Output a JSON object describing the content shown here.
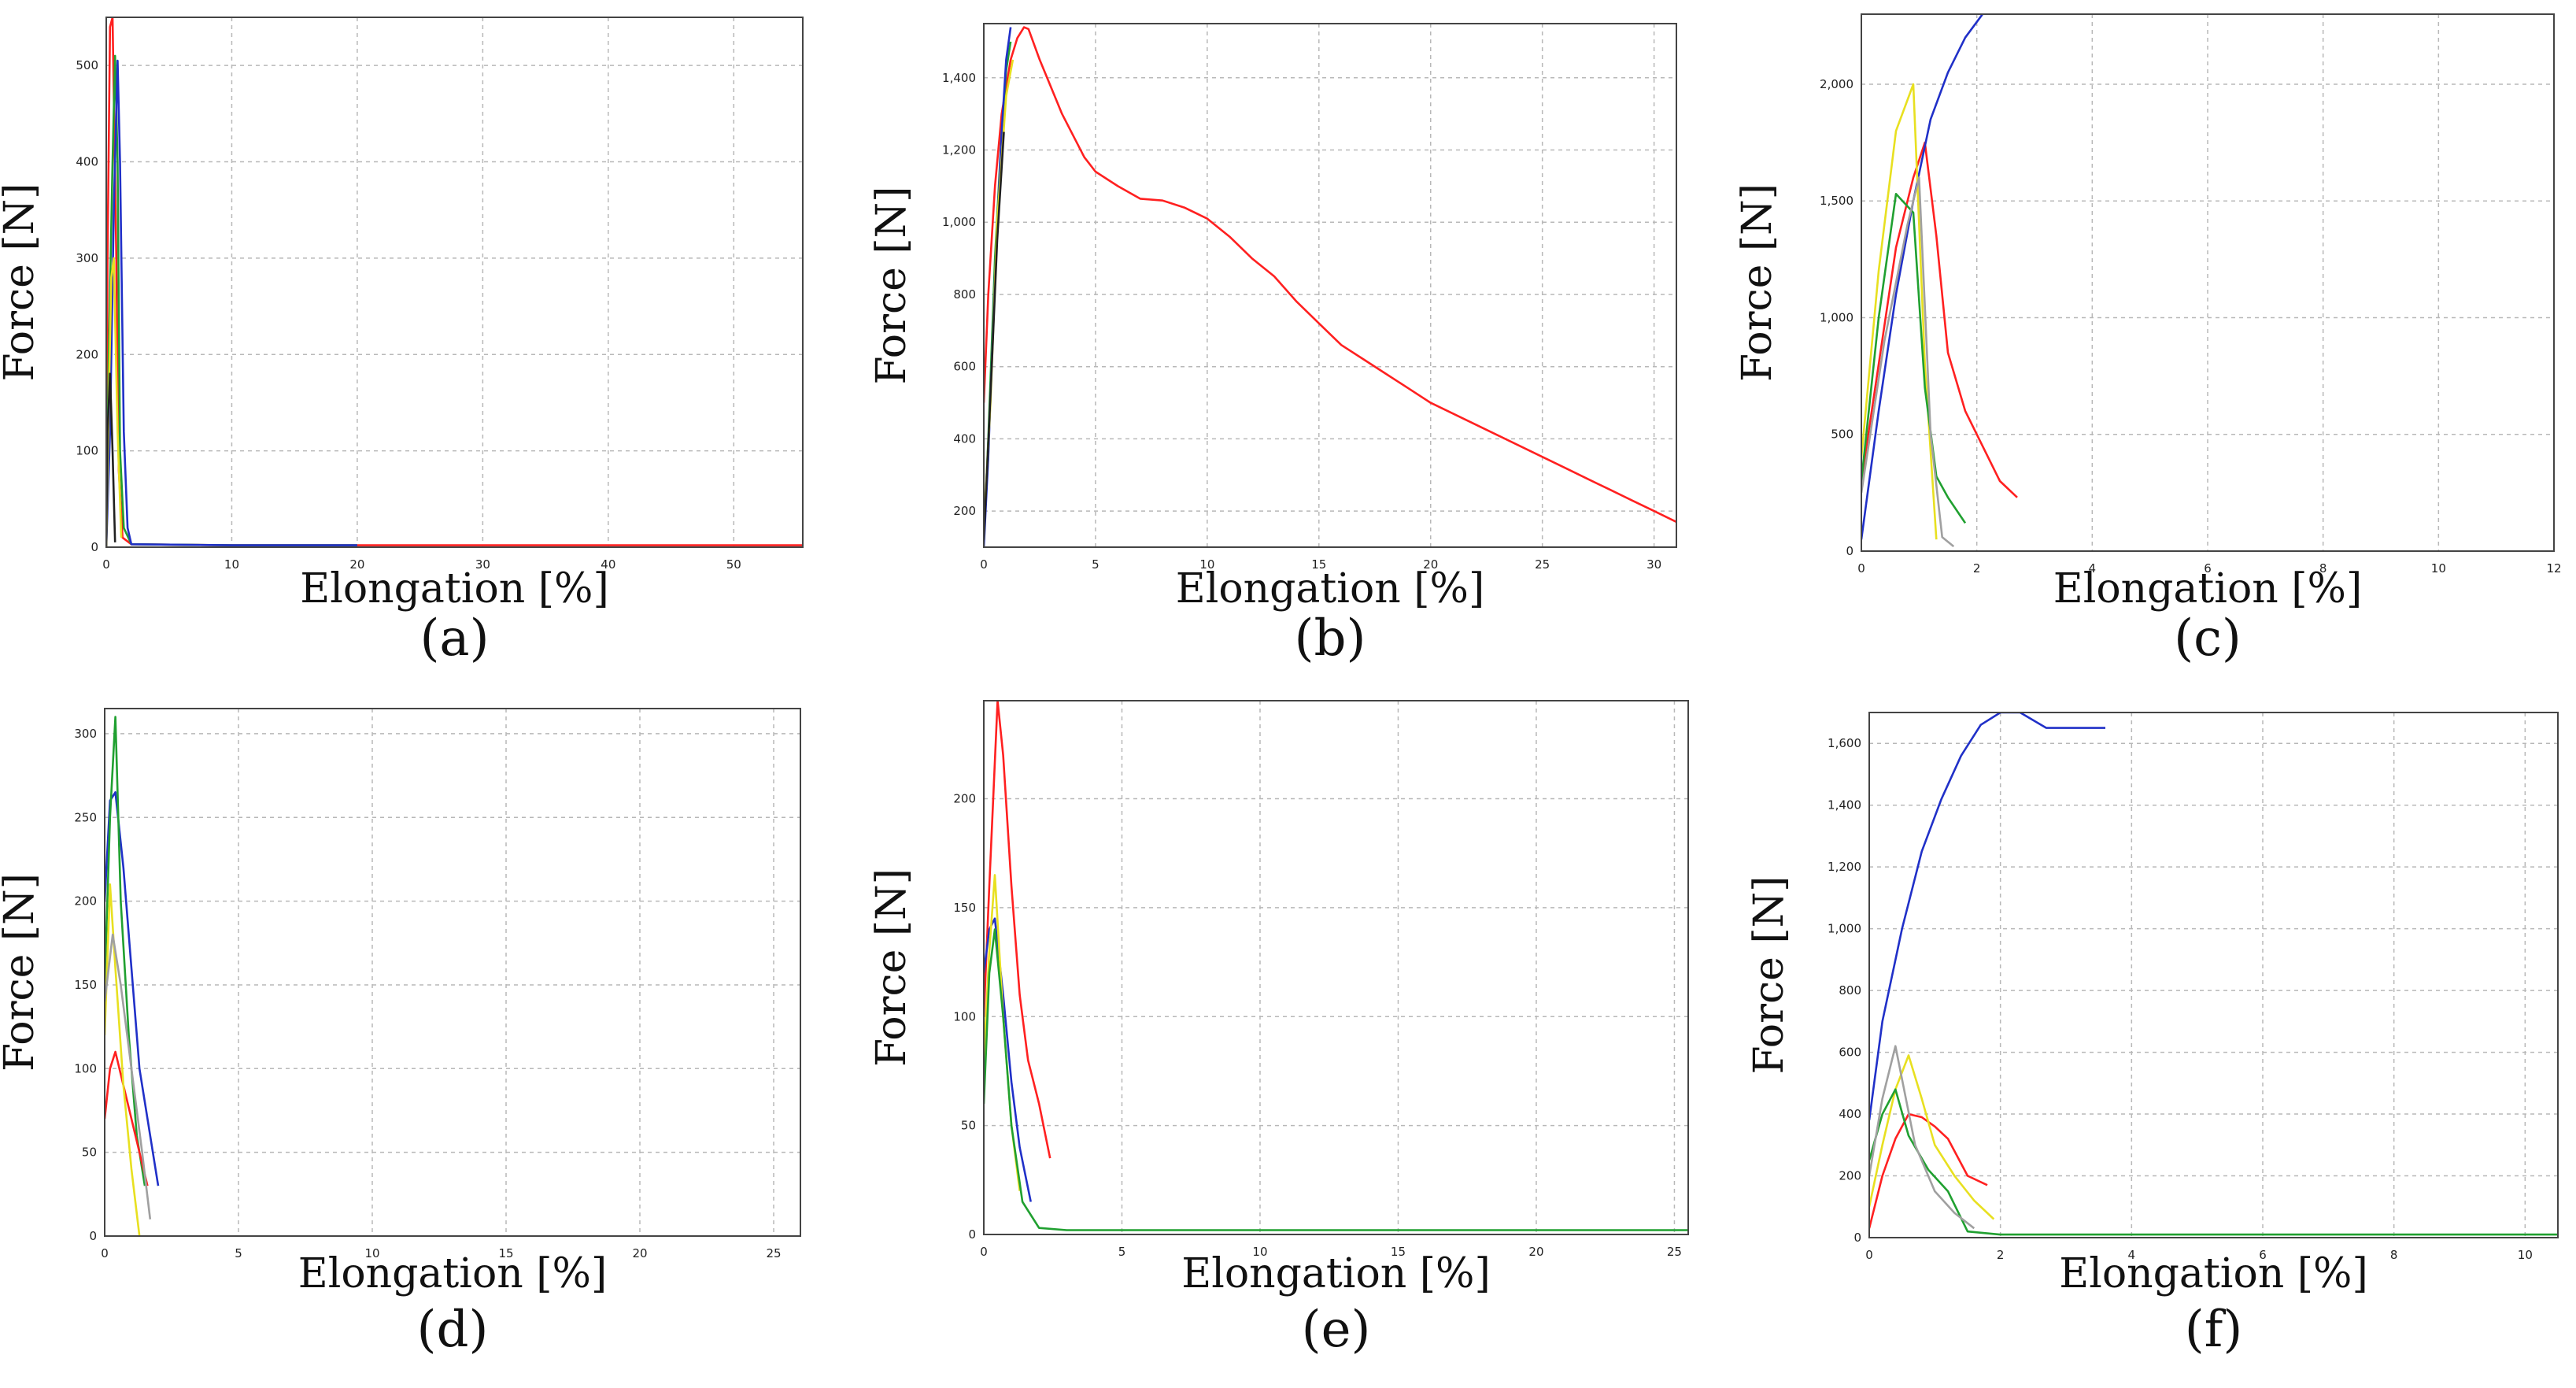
{
  "figure": {
    "colors": {
      "frame": "#444444",
      "grid": "#b8b8b8",
      "text": "#111111"
    }
  },
  "chart_data": [
    {
      "id": "a",
      "type": "line",
      "panel_label": "(a)",
      "xlabel": "Elongation [%]",
      "ylabel": "Force [N]",
      "xlim": [
        0,
        55.5
      ],
      "ylim": [
        0,
        550
      ],
      "xticks": [
        0,
        10,
        20,
        30,
        40,
        50
      ],
      "xtick_labels": [
        "0",
        "10",
        "20",
        "30",
        "40",
        "50"
      ],
      "yticks": [
        0,
        100,
        200,
        300,
        400,
        500
      ],
      "ytick_labels": [
        "0",
        "100",
        "200",
        "300",
        "400",
        "500"
      ],
      "series": [
        {
          "name": "red",
          "color": "#ff2020",
          "x": [
            0,
            0.1,
            0.3,
            0.5,
            0.8,
            1.0,
            1.3,
            2,
            10,
            20,
            30,
            40,
            50,
            55.5
          ],
          "y": [
            0,
            300,
            540,
            550,
            300,
            80,
            10,
            3,
            2,
            2,
            2,
            2,
            2,
            2
          ]
        },
        {
          "name": "green",
          "color": "#20a030",
          "x": [
            0,
            0.2,
            0.5,
            0.7,
            0.9,
            1.1,
            1.4,
            2,
            10,
            20
          ],
          "y": [
            0,
            200,
            400,
            510,
            400,
            100,
            20,
            3,
            2,
            2
          ]
        },
        {
          "name": "blue",
          "color": "#2030c8",
          "x": [
            0,
            0.3,
            0.6,
            0.9,
            1.1,
            1.4,
            1.7,
            2,
            10,
            20
          ],
          "y": [
            0,
            120,
            350,
            505,
            400,
            120,
            20,
            3,
            2,
            2
          ]
        },
        {
          "name": "yellow",
          "color": "#e8e020",
          "x": [
            0,
            0.2,
            0.4,
            0.6,
            0.9,
            1.2
          ],
          "y": [
            0,
            150,
            280,
            300,
            120,
            10
          ]
        },
        {
          "name": "black",
          "color": "#202020",
          "x": [
            0,
            0.1,
            0.3,
            0.5,
            0.7
          ],
          "y": [
            0,
            120,
            180,
            100,
            5
          ]
        }
      ]
    },
    {
      "id": "b",
      "type": "line",
      "panel_label": "(b)",
      "xlabel": "Elongation [%]",
      "ylabel": "Force [N]",
      "xlim": [
        0,
        31
      ],
      "ylim": [
        100,
        1550
      ],
      "xticks": [
        0,
        5,
        10,
        15,
        20,
        25,
        30
      ],
      "xtick_labels": [
        "0",
        "5",
        "10",
        "15",
        "20",
        "25",
        "30"
      ],
      "yticks": [
        200,
        400,
        600,
        800,
        1000,
        1200,
        1400
      ],
      "ytick_labels": [
        "200",
        "400",
        "600",
        "800",
        "1,000",
        "1,200",
        "1,400"
      ],
      "series": [
        {
          "name": "red",
          "color": "#ff2020",
          "x": [
            0,
            0.2,
            0.5,
            0.8,
            1.2,
            1.5,
            1.8,
            2.0,
            2.5,
            3.5,
            4.5,
            5.0,
            6.0,
            7.0,
            8.0,
            9.0,
            10.0,
            11.0,
            12.0,
            13.0,
            14.0,
            15.0,
            16.0,
            17.0,
            18.0,
            19.0,
            20.0,
            21.0,
            22.0,
            23.0,
            24.0,
            25.0,
            26.0,
            27.0,
            28.0,
            29.0,
            30.0,
            31.0
          ],
          "y": [
            500,
            800,
            1100,
            1300,
            1450,
            1510,
            1540,
            1535,
            1450,
            1300,
            1180,
            1140,
            1100,
            1065,
            1060,
            1040,
            1010,
            960,
            900,
            850,
            780,
            720,
            660,
            620,
            580,
            540,
            500,
            470,
            440,
            410,
            380,
            350,
            320,
            290,
            260,
            230,
            200,
            170
          ]
        },
        {
          "name": "green",
          "color": "#20a030",
          "x": [
            0,
            0.2,
            0.5,
            0.8,
            1.0,
            1.2
          ],
          "y": [
            120,
            400,
            900,
            1250,
            1420,
            1500
          ]
        },
        {
          "name": "blue",
          "color": "#2030c8",
          "x": [
            0,
            0.2,
            0.5,
            0.8,
            1.0,
            1.2
          ],
          "y": [
            100,
            350,
            850,
            1250,
            1450,
            1540
          ]
        },
        {
          "name": "yellow",
          "color": "#e8e020",
          "x": [
            0,
            0.3,
            0.6,
            1.0,
            1.3
          ],
          "y": [
            150,
            500,
            1000,
            1350,
            1450
          ]
        },
        {
          "name": "black",
          "color": "#202020",
          "x": [
            0,
            0.3,
            0.6,
            0.9
          ],
          "y": [
            120,
            520,
            950,
            1250
          ]
        }
      ]
    },
    {
      "id": "c",
      "type": "line",
      "panel_label": "(c)",
      "xlabel": "Elongation [%]",
      "ylabel": "Force [N]",
      "xlim": [
        0,
        12
      ],
      "ylim": [
        0,
        2300
      ],
      "xticks": [
        0,
        2,
        4,
        6,
        8,
        10,
        12
      ],
      "xtick_labels": [
        "0",
        "2",
        "4",
        "6",
        "8",
        "10",
        "12"
      ],
      "yticks": [
        0,
        500,
        1000,
        1500,
        2000
      ],
      "ytick_labels": [
        "0",
        "500",
        "1,000",
        "1,500",
        "2,000"
      ],
      "series": [
        {
          "name": "red",
          "color": "#ff2020",
          "x": [
            0,
            0.3,
            0.6,
            0.9,
            1.1,
            1.3,
            1.5,
            1.8,
            2.1,
            2.4,
            2.7
          ],
          "y": [
            300,
            800,
            1300,
            1600,
            1750,
            1350,
            850,
            600,
            450,
            300,
            230
          ]
        },
        {
          "name": "blue",
          "color": "#2030c8",
          "x": [
            0,
            0.3,
            0.6,
            0.9,
            1.2,
            1.5,
            1.8,
            2.1
          ],
          "y": [
            50,
            600,
            1100,
            1500,
            1850,
            2050,
            2200,
            2300
          ]
        },
        {
          "name": "yellow",
          "color": "#e8e020",
          "x": [
            0,
            0.3,
            0.6,
            0.9,
            1.1,
            1.3
          ],
          "y": [
            400,
            1200,
            1800,
            2000,
            800,
            50
          ]
        },
        {
          "name": "green",
          "color": "#20a030",
          "x": [
            0,
            0.3,
            0.6,
            0.9,
            1.1,
            1.3,
            1.5,
            1.8
          ],
          "y": [
            300,
            1000,
            1530,
            1450,
            700,
            320,
            230,
            120
          ]
        },
        {
          "name": "gray",
          "color": "#a0a0a0",
          "x": [
            0,
            0.4,
            0.8,
            1.0,
            1.2,
            1.4,
            1.6
          ],
          "y": [
            250,
            900,
            1400,
            1600,
            500,
            60,
            20
          ]
        }
      ]
    },
    {
      "id": "d",
      "type": "line",
      "panel_label": "(d)",
      "xlabel": "Elongation [%]",
      "ylabel": "Force [N]",
      "xlim": [
        0,
        26
      ],
      "ylim": [
        0,
        315
      ],
      "xticks": [
        0,
        5,
        10,
        15,
        20,
        25
      ],
      "xtick_labels": [
        "0",
        "5",
        "10",
        "15",
        "20",
        "25"
      ],
      "yticks": [
        0,
        50,
        100,
        150,
        200,
        250,
        300
      ],
      "ytick_labels": [
        "0",
        "50",
        "100",
        "150",
        "200",
        "250",
        "300"
      ],
      "series": [
        {
          "name": "blue",
          "color": "#2030c8",
          "x": [
            0,
            0.2,
            0.4,
            0.7,
            1.0,
            1.3,
            1.6,
            2.0
          ],
          "y": [
            200,
            260,
            265,
            220,
            160,
            100,
            70,
            30
          ]
        },
        {
          "name": "green",
          "color": "#20a030",
          "x": [
            0,
            0.2,
            0.4,
            0.6,
            0.9,
            1.2,
            1.5
          ],
          "y": [
            150,
            250,
            310,
            200,
            120,
            60,
            30
          ]
        },
        {
          "name": "red",
          "color": "#ff2020",
          "x": [
            0,
            0.2,
            0.4,
            0.7,
            1.0,
            1.3,
            1.6
          ],
          "y": [
            70,
            100,
            110,
            90,
            70,
            50,
            30
          ]
        },
        {
          "name": "yellow",
          "color": "#e8e020",
          "x": [
            0,
            0.2,
            0.4,
            0.7,
            1.0,
            1.3
          ],
          "y": [
            120,
            210,
            160,
            90,
            40,
            0
          ]
        },
        {
          "name": "gray",
          "color": "#a0a0a0",
          "x": [
            0,
            0.3,
            0.6,
            1.0,
            1.4,
            1.7
          ],
          "y": [
            140,
            180,
            150,
            100,
            50,
            10
          ]
        }
      ]
    },
    {
      "id": "e",
      "type": "line",
      "panel_label": "(e)",
      "xlabel": "Elongation [%]",
      "ylabel": "Force [N]",
      "xlim": [
        0,
        25.5
      ],
      "ylim": [
        0,
        245
      ],
      "xticks": [
        0,
        5,
        10,
        15,
        20,
        25
      ],
      "xtick_labels": [
        "0",
        "5",
        "10",
        "15",
        "20",
        "25"
      ],
      "yticks": [
        0,
        50,
        100,
        150,
        200
      ],
      "ytick_labels": [
        "0",
        "50",
        "100",
        "150",
        "200"
      ],
      "series": [
        {
          "name": "red",
          "color": "#ff2020",
          "x": [
            0,
            0.2,
            0.5,
            0.7,
            1.0,
            1.3,
            1.6,
            2.0,
            2.4
          ],
          "y": [
            100,
            160,
            245,
            220,
            160,
            110,
            80,
            60,
            35
          ]
        },
        {
          "name": "blue",
          "color": "#2030c8",
          "x": [
            0,
            0.2,
            0.4,
            0.7,
            1.0,
            1.3,
            1.7
          ],
          "y": [
            120,
            140,
            145,
            110,
            70,
            40,
            15
          ]
        },
        {
          "name": "yellow",
          "color": "#e8e020",
          "x": [
            0,
            0.2,
            0.4,
            0.7,
            1.0,
            1.3
          ],
          "y": [
            80,
            130,
            165,
            100,
            50,
            20
          ]
        },
        {
          "name": "green",
          "color": "#20a030",
          "x": [
            0,
            0.2,
            0.4,
            0.7,
            1.0,
            1.4,
            2.0,
            3.0,
            5,
            10,
            15,
            20,
            25.5
          ],
          "y": [
            60,
            120,
            140,
            100,
            50,
            15,
            3,
            2,
            2,
            2,
            2,
            2,
            2
          ]
        }
      ]
    },
    {
      "id": "f",
      "type": "line",
      "panel_label": "(f)",
      "xlabel": "Elongation [%]",
      "ylabel": "Force [N]",
      "xlim": [
        0,
        10.5
      ],
      "ylim": [
        0,
        1700
      ],
      "xticks": [
        0,
        2,
        4,
        6,
        8,
        10
      ],
      "xtick_labels": [
        "0",
        "2",
        "4",
        "6",
        "8",
        "10"
      ],
      "yticks": [
        0,
        200,
        400,
        600,
        800,
        1000,
        1200,
        1400,
        1600
      ],
      "ytick_labels": [
        "0",
        "200",
        "400",
        "600",
        "800",
        "1,000",
        "1,200",
        "1,400",
        "1,600"
      ],
      "series": [
        {
          "name": "blue",
          "color": "#2030c8",
          "x": [
            0,
            0.2,
            0.5,
            0.8,
            1.1,
            1.4,
            1.7,
            2.0,
            2.3,
            2.7,
            3.0,
            3.6
          ],
          "y": [
            380,
            700,
            1000,
            1250,
            1420,
            1560,
            1660,
            1700,
            1700,
            1650,
            1650,
            1650
          ]
        },
        {
          "name": "red",
          "color": "#ff2020",
          "x": [
            0,
            0.2,
            0.4,
            0.6,
            0.8,
            1.0,
            1.2,
            1.5,
            1.8
          ],
          "y": [
            30,
            200,
            320,
            400,
            390,
            360,
            320,
            200,
            170
          ]
        },
        {
          "name": "yellow",
          "color": "#e8e020",
          "x": [
            0,
            0.2,
            0.4,
            0.6,
            0.8,
            1.0,
            1.3,
            1.6,
            1.9
          ],
          "y": [
            100,
            300,
            480,
            590,
            450,
            300,
            200,
            120,
            60
          ]
        },
        {
          "name": "green",
          "color": "#20a030",
          "x": [
            0,
            0.2,
            0.4,
            0.6,
            0.9,
            1.2,
            1.5,
            2,
            4,
            6,
            8,
            10.5
          ],
          "y": [
            250,
            400,
            480,
            330,
            220,
            150,
            20,
            10,
            10,
            10,
            10,
            10
          ]
        },
        {
          "name": "gray",
          "color": "#a0a0a0",
          "x": [
            0,
            0.2,
            0.4,
            0.7,
            1.0,
            1.3,
            1.6
          ],
          "y": [
            200,
            450,
            620,
            300,
            150,
            80,
            30
          ]
        }
      ]
    }
  ]
}
